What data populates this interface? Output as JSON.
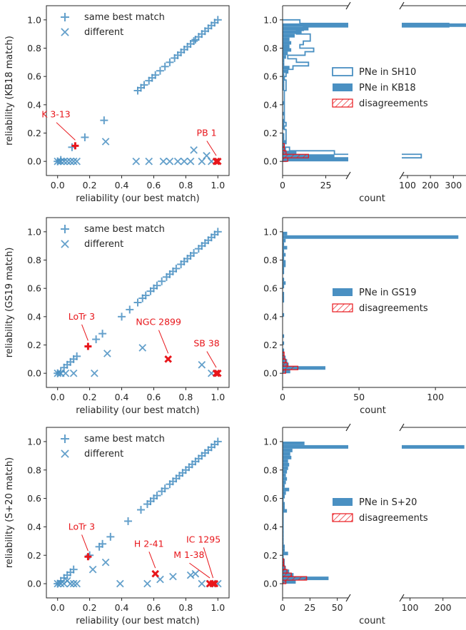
{
  "colors": {
    "blue": "#4a90c2",
    "red": "#e8161b",
    "text": "#262626"
  },
  "chart_data": [
    {
      "type": "scatter",
      "xlabel": "reliability (our best match)",
      "ylabel": "reliability (KB18 match)",
      "xlim": [
        -0.07,
        1.07
      ],
      "ylim": [
        -0.1,
        1.1
      ],
      "xticks": [
        0.0,
        0.2,
        0.4,
        0.6,
        0.8,
        1.0
      ],
      "yticks": [
        0.0,
        0.2,
        0.4,
        0.6,
        0.8,
        1.0
      ],
      "legend": [
        "same best match",
        "different"
      ],
      "legend_placement": "top-left",
      "series": [
        {
          "name": "same best match",
          "marker": "plus",
          "color": "blue",
          "x": [
            0.5,
            0.52,
            0.54,
            0.57,
            0.59,
            0.61,
            0.64,
            0.67,
            0.7,
            0.73,
            0.75,
            0.77,
            0.79,
            0.81,
            0.83,
            0.85,
            0.86,
            0.88,
            0.9,
            0.92,
            0.94,
            0.96,
            0.98,
            1.0,
            0.09,
            0.17,
            0.29,
            0.0,
            0.02
          ],
          "y": [
            0.5,
            0.52,
            0.54,
            0.57,
            0.59,
            0.61,
            0.64,
            0.67,
            0.7,
            0.73,
            0.75,
            0.77,
            0.79,
            0.81,
            0.83,
            0.85,
            0.86,
            0.88,
            0.9,
            0.92,
            0.94,
            0.96,
            0.98,
            1.0,
            0.1,
            0.17,
            0.29,
            0.0,
            0.01
          ]
        },
        {
          "name": "different",
          "marker": "cross",
          "color": "blue",
          "x": [
            0.0,
            0.02,
            0.04,
            0.06,
            0.08,
            0.1,
            0.12,
            0.3,
            0.49,
            0.57,
            0.66,
            0.7,
            0.75,
            0.79,
            0.83,
            0.85,
            0.9,
            0.93,
            0.96
          ],
          "y": [
            0.0,
            0.0,
            0.0,
            0.0,
            0.0,
            0.0,
            0.0,
            0.14,
            0.0,
            0.0,
            0.0,
            0.0,
            0.0,
            0.0,
            0.0,
            0.08,
            0.0,
            0.04,
            0.0
          ]
        },
        {
          "name": "",
          "marker": "plus",
          "color": "red",
          "x": [
            0.11
          ],
          "y": [
            0.11
          ]
        },
        {
          "name": "",
          "marker": "cross",
          "color": "red",
          "x": [
            0.99,
            1.0
          ],
          "y": [
            0.0,
            0.0
          ]
        }
      ],
      "annotations": [
        {
          "text": "K 3-13",
          "x": 0.11,
          "y": 0.11,
          "tx": -0.01,
          "ty": 0.31
        },
        {
          "text": "PB 1",
          "x": 0.99,
          "y": 0.0,
          "tx": 0.93,
          "ty": 0.18
        }
      ]
    },
    {
      "type": "histogram",
      "orientation": "horizontal",
      "xlabel": "count",
      "ylim": [
        -0.1,
        1.1
      ],
      "yticks": [
        0.0,
        0.2,
        0.4,
        0.6,
        0.8,
        1.0
      ],
      "broken_x_axis": true,
      "left_xlim": [
        0,
        38
      ],
      "left_xticks": [
        0,
        25
      ],
      "right_xlim": [
        75,
        355
      ],
      "right_xticks": [
        100,
        200,
        300
      ],
      "right_tick_labels": [
        "100",
        "200",
        "300"
      ],
      "bin_edges": [
        0.0,
        0.025,
        0.05,
        0.075,
        0.1,
        0.125,
        0.15,
        0.175,
        0.2,
        0.225,
        0.25,
        0.275,
        0.3,
        0.325,
        0.35,
        0.375,
        0.4,
        0.425,
        0.45,
        0.475,
        0.5,
        0.525,
        0.55,
        0.575,
        0.6,
        0.625,
        0.65,
        0.675,
        0.7,
        0.725,
        0.75,
        0.775,
        0.8,
        0.825,
        0.85,
        0.875,
        0.9,
        0.925,
        0.95,
        0.975,
        1.0
      ],
      "legend": [
        "PNe in SH10",
        "PNe in KB18",
        "disagreements"
      ],
      "legend_placement": "center-right",
      "series": [
        {
          "name": "PNe in SH10",
          "style": "step",
          "counts": [
            2,
            160,
            30,
            4,
            1,
            2,
            2,
            2,
            2,
            1,
            2,
            1,
            1,
            1,
            1,
            1,
            1,
            1,
            1,
            1,
            2,
            2,
            2,
            1,
            2,
            3,
            6,
            15,
            8,
            3,
            13,
            18,
            10,
            12,
            16,
            16,
            8,
            12,
            280,
            10
          ]
        },
        {
          "name": "PNe in KB18",
          "style": "filled",
          "counts": [
            38,
            30,
            8,
            2,
            1,
            2,
            1,
            1,
            0,
            1,
            1,
            1,
            0,
            1,
            0,
            0,
            1,
            0,
            0,
            0,
            1,
            1,
            1,
            1,
            1,
            3,
            4,
            1,
            1,
            2,
            3,
            5,
            4,
            5,
            4,
            7,
            11,
            15,
            355,
            0
          ]
        },
        {
          "name": "disagreements",
          "style": "hatched",
          "counts": [
            3,
            15,
            2,
            1,
            1,
            0,
            0,
            0,
            0,
            0,
            0,
            0,
            0,
            0,
            0,
            0,
            0,
            0,
            0,
            0,
            0,
            0,
            0,
            0,
            0,
            0,
            0,
            0,
            0,
            0,
            0,
            0,
            0,
            0,
            0,
            0,
            0,
            0,
            0,
            0
          ]
        }
      ]
    },
    {
      "type": "scatter",
      "xlabel": "reliability (our best match)",
      "ylabel": "reliability (GS19 match)",
      "xlim": [
        -0.07,
        1.07
      ],
      "ylim": [
        -0.1,
        1.1
      ],
      "xticks": [
        0.0,
        0.2,
        0.4,
        0.6,
        0.8,
        1.0
      ],
      "yticks": [
        0.0,
        0.2,
        0.4,
        0.6,
        0.8,
        1.0
      ],
      "legend": [
        "same best match",
        "different"
      ],
      "legend_placement": "top-left",
      "series": [
        {
          "name": "same best match",
          "marker": "plus",
          "color": "blue",
          "x": [
            0.0,
            0.02,
            0.04,
            0.06,
            0.08,
            0.1,
            0.12,
            0.24,
            0.28,
            0.4,
            0.45,
            0.5,
            0.53,
            0.55,
            0.58,
            0.6,
            0.62,
            0.65,
            0.68,
            0.7,
            0.72,
            0.74,
            0.77,
            0.79,
            0.81,
            0.83,
            0.85,
            0.88,
            0.9,
            0.92,
            0.94,
            0.96,
            0.98,
            1.0
          ],
          "y": [
            0.0,
            0.01,
            0.04,
            0.06,
            0.08,
            0.1,
            0.12,
            0.24,
            0.28,
            0.4,
            0.45,
            0.5,
            0.53,
            0.55,
            0.58,
            0.6,
            0.62,
            0.65,
            0.68,
            0.7,
            0.72,
            0.74,
            0.77,
            0.79,
            0.81,
            0.83,
            0.85,
            0.88,
            0.9,
            0.92,
            0.94,
            0.96,
            0.98,
            1.0
          ]
        },
        {
          "name": "different",
          "marker": "cross",
          "color": "blue",
          "x": [
            0.0,
            0.02,
            0.05,
            0.1,
            0.23,
            0.31,
            0.53,
            0.9,
            0.96
          ],
          "y": [
            0.0,
            0.0,
            0.0,
            0.0,
            0.0,
            0.14,
            0.18,
            0.06,
            0.0
          ]
        },
        {
          "name": "",
          "marker": "plus",
          "color": "red",
          "x": [
            0.19
          ],
          "y": [
            0.19
          ]
        },
        {
          "name": "",
          "marker": "cross",
          "color": "red",
          "x": [
            0.69,
            0.99,
            1.0
          ],
          "y": [
            0.1,
            0.0,
            0.0
          ]
        }
      ],
      "annotations": [
        {
          "text": "LoTr 3",
          "x": 0.19,
          "y": 0.19,
          "tx": 0.15,
          "ty": 0.38
        },
        {
          "text": "NGC 2899",
          "x": 0.69,
          "y": 0.1,
          "tx": 0.63,
          "ty": 0.34
        },
        {
          "text": "SB 38",
          "x": 0.99,
          "y": 0.0,
          "tx": 0.93,
          "ty": 0.19
        }
      ]
    },
    {
      "type": "histogram",
      "orientation": "horizontal",
      "xlabel": "count",
      "ylim": [
        -0.1,
        1.1
      ],
      "yticks": [
        0.0,
        0.2,
        0.4,
        0.6,
        0.8,
        1.0
      ],
      "broken_x_axis": false,
      "xlim": [
        0,
        120
      ],
      "xticks": [
        0,
        50,
        100
      ],
      "bin_edges": [
        0.0,
        0.025,
        0.05,
        0.075,
        0.1,
        0.125,
        0.15,
        0.175,
        0.2,
        0.225,
        0.25,
        0.275,
        0.3,
        0.325,
        0.35,
        0.375,
        0.4,
        0.425,
        0.45,
        0.475,
        0.5,
        0.525,
        0.55,
        0.575,
        0.6,
        0.625,
        0.65,
        0.675,
        0.7,
        0.725,
        0.75,
        0.775,
        0.8,
        0.825,
        0.85,
        0.875,
        0.9,
        0.925,
        0.95,
        0.975,
        1.0
      ],
      "legend": [
        "PNe in GS19",
        "disagreements"
      ],
      "legend_placement": "center-right",
      "series": [
        {
          "name": "PNe in GS19",
          "style": "filled",
          "counts": [
            5,
            28,
            4,
            3,
            2,
            1,
            1,
            0,
            1,
            0,
            1,
            0,
            0,
            0,
            0,
            0,
            1,
            0,
            0,
            0,
            1,
            1,
            1,
            0,
            1,
            2,
            1,
            0,
            1,
            1,
            2,
            2,
            1,
            2,
            1,
            3,
            1,
            2,
            115,
            3
          ]
        },
        {
          "name": "disagreements",
          "style": "hatched",
          "counts": [
            2,
            10,
            3,
            2,
            1,
            1,
            0,
            0,
            0,
            0,
            0,
            0,
            0,
            0,
            0,
            0,
            0,
            0,
            0,
            0,
            0,
            0,
            0,
            0,
            0,
            0,
            0,
            0,
            0,
            0,
            0,
            0,
            0,
            0,
            0,
            0,
            0,
            0,
            0,
            0
          ]
        }
      ]
    },
    {
      "type": "scatter",
      "xlabel": "reliability (our best match)",
      "ylabel": "reliability (S+20 match)",
      "xlim": [
        -0.07,
        1.07
      ],
      "ylim": [
        -0.1,
        1.1
      ],
      "xticks": [
        0.0,
        0.2,
        0.4,
        0.6,
        0.8,
        1.0
      ],
      "yticks": [
        0.0,
        0.2,
        0.4,
        0.6,
        0.8,
        1.0
      ],
      "legend": [
        "same best match",
        "different"
      ],
      "legend_placement": "top-left",
      "series": [
        {
          "name": "same best match",
          "marker": "plus",
          "color": "blue",
          "x": [
            0.0,
            0.02,
            0.04,
            0.06,
            0.08,
            0.1,
            0.2,
            0.26,
            0.28,
            0.33,
            0.44,
            0.52,
            0.56,
            0.58,
            0.6,
            0.62,
            0.65,
            0.67,
            0.7,
            0.72,
            0.74,
            0.76,
            0.78,
            0.8,
            0.82,
            0.84,
            0.86,
            0.88,
            0.9,
            0.92,
            0.94,
            0.96,
            0.98,
            1.0
          ],
          "y": [
            0.0,
            0.02,
            0.04,
            0.06,
            0.08,
            0.1,
            0.2,
            0.26,
            0.28,
            0.33,
            0.44,
            0.52,
            0.56,
            0.58,
            0.6,
            0.62,
            0.65,
            0.67,
            0.7,
            0.72,
            0.74,
            0.76,
            0.78,
            0.8,
            0.82,
            0.84,
            0.86,
            0.88,
            0.9,
            0.92,
            0.94,
            0.96,
            0.98,
            1.0
          ]
        },
        {
          "name": "different",
          "marker": "cross",
          "color": "blue",
          "x": [
            0.0,
            0.02,
            0.04,
            0.06,
            0.08,
            0.1,
            0.12,
            0.22,
            0.3,
            0.39,
            0.56,
            0.64,
            0.72,
            0.83,
            0.86,
            0.9,
            0.95,
            1.0
          ],
          "y": [
            0.0,
            0.0,
            0.0,
            0.02,
            0.0,
            0.0,
            0.0,
            0.1,
            0.15,
            0.0,
            0.0,
            0.03,
            0.05,
            0.06,
            0.07,
            0.0,
            0.0,
            0.0
          ]
        },
        {
          "name": "",
          "marker": "plus",
          "color": "red",
          "x": [
            0.19
          ],
          "y": [
            0.19
          ]
        },
        {
          "name": "",
          "marker": "cross",
          "color": "red",
          "x": [
            0.61,
            0.95,
            0.97,
            0.98
          ],
          "y": [
            0.07,
            0.0,
            0.0,
            0.0
          ]
        }
      ],
      "annotations": [
        {
          "text": "LoTr 3",
          "x": 0.19,
          "y": 0.19,
          "tx": 0.15,
          "ty": 0.38
        },
        {
          "text": "H 2-41",
          "x": 0.61,
          "y": 0.07,
          "tx": 0.57,
          "ty": 0.26
        },
        {
          "text": "M 1-38",
          "x": 0.95,
          "y": 0.0,
          "tx": 0.82,
          "ty": 0.18
        },
        {
          "text": "IC 1295",
          "x": 0.97,
          "y": 0.0,
          "tx": 0.91,
          "ty": 0.29
        }
      ]
    },
    {
      "type": "histogram",
      "orientation": "horizontal",
      "xlabel": "count",
      "ylim": [
        -0.1,
        1.1
      ],
      "yticks": [
        0.0,
        0.2,
        0.4,
        0.6,
        0.8,
        1.0
      ],
      "broken_x_axis": true,
      "left_xlim": [
        0,
        60
      ],
      "left_xticks": [
        0,
        25,
        50
      ],
      "right_xlim": [
        75,
        270
      ],
      "right_xticks": [
        100,
        200
      ],
      "right_tick_labels": [
        "100",
        "200"
      ],
      "bin_edges": [
        0.0,
        0.025,
        0.05,
        0.075,
        0.1,
        0.125,
        0.15,
        0.175,
        0.2,
        0.225,
        0.25,
        0.275,
        0.3,
        0.325,
        0.35,
        0.375,
        0.4,
        0.425,
        0.45,
        0.475,
        0.5,
        0.525,
        0.55,
        0.575,
        0.6,
        0.625,
        0.65,
        0.675,
        0.7,
        0.725,
        0.75,
        0.775,
        0.8,
        0.825,
        0.85,
        0.875,
        0.9,
        0.925,
        0.95,
        0.975,
        1.0
      ],
      "legend": [
        "PNe in S+20",
        "disagreements"
      ],
      "legend_placement": "center-right",
      "series": [
        {
          "name": "PNe in S+20",
          "style": "filled",
          "counts": [
            12,
            42,
            10,
            6,
            3,
            2,
            2,
            1,
            5,
            2,
            2,
            1,
            1,
            1,
            1,
            1,
            1,
            1,
            1,
            1,
            4,
            2,
            2,
            1,
            2,
            3,
            6,
            2,
            3,
            4,
            3,
            4,
            5,
            6,
            5,
            8,
            7,
            9,
            265,
            20
          ]
        },
        {
          "name": "disagreements",
          "style": "hatched",
          "counts": [
            3,
            22,
            8,
            4,
            2,
            1,
            1,
            0,
            0,
            0,
            0,
            0,
            0,
            0,
            0,
            0,
            0,
            0,
            0,
            0,
            0,
            0,
            0,
            0,
            0,
            0,
            0,
            0,
            0,
            0,
            0,
            0,
            0,
            0,
            0,
            0,
            0,
            0,
            0,
            0
          ]
        }
      ]
    }
  ]
}
